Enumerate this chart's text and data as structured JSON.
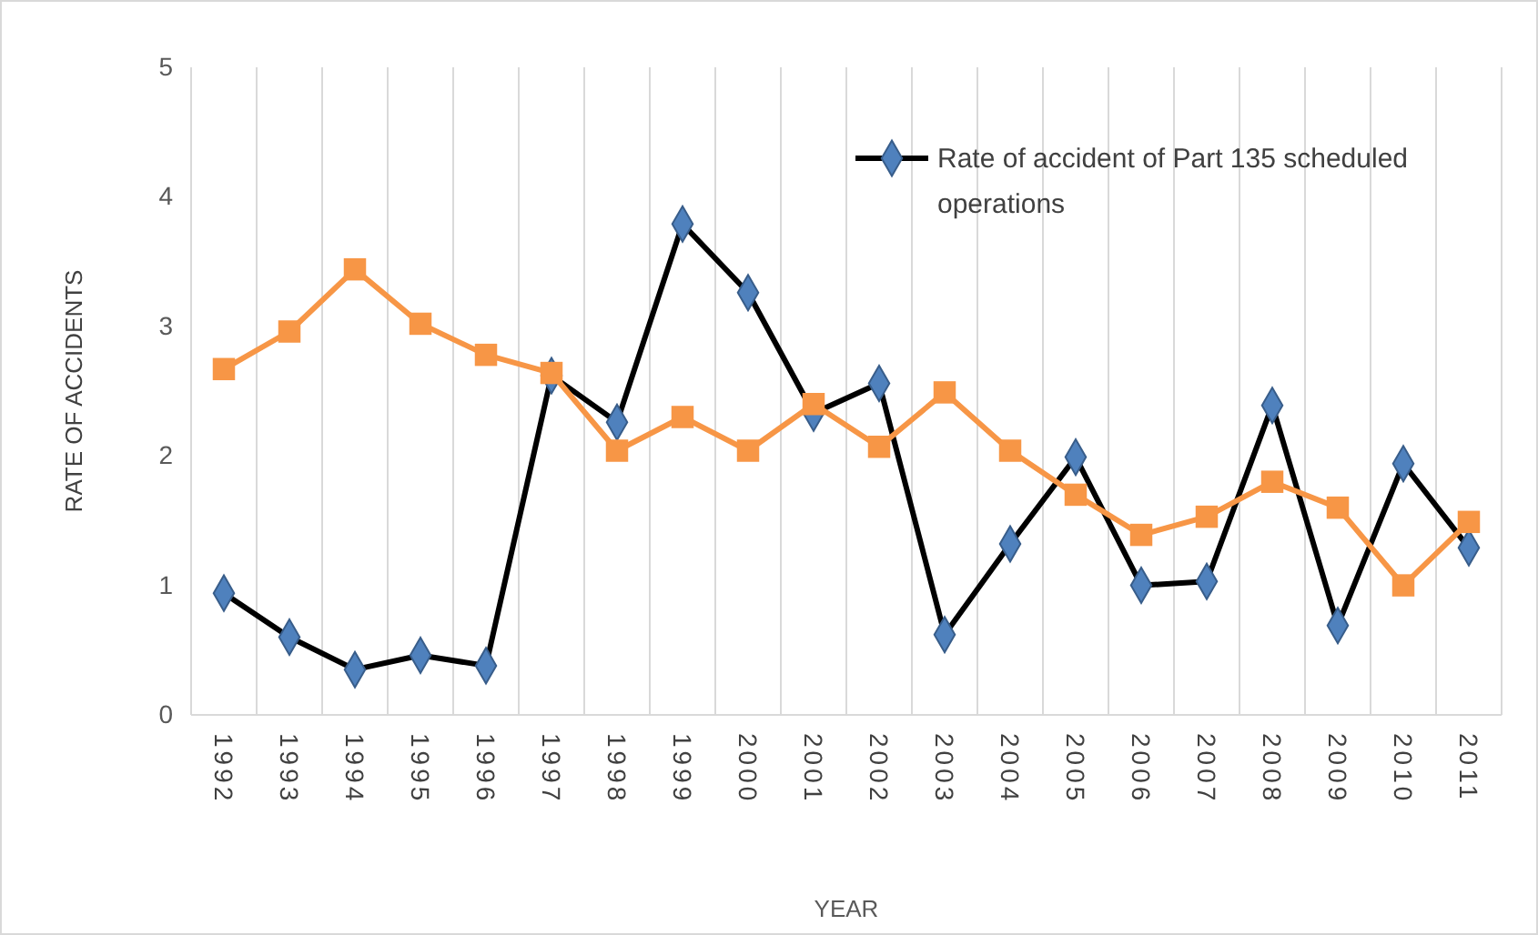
{
  "chart_data": {
    "type": "line",
    "xlabel": "YEAR",
    "ylabel": "RATE OF ACCIDENTS",
    "categories": [
      "1992",
      "1993",
      "1994",
      "1995",
      "1996",
      "1997",
      "1998",
      "1999",
      "2000",
      "2001",
      "2002",
      "2003",
      "2004",
      "2005",
      "2006",
      "2007",
      "2008",
      "2009",
      "2010",
      "2011"
    ],
    "series": [
      {
        "name": "Rate of accident of Part 135 scheduled operations",
        "color": "#000000",
        "colors": [
          "#4f81bd",
          "#4f81bd",
          "#4f81bd",
          "#4f81bd",
          "#4f81bd",
          "#4f81bd",
          "#4f81bd",
          "#4f81bd",
          "#4f81bd",
          "#4f81bd",
          "#4f81bd",
          "#4f81bd",
          "#4f81bd",
          "#4f81bd",
          "#4f81bd",
          "#4f81bd",
          "#4f81bd",
          "#4f81bd",
          "#4f81bd",
          "#4f81bd"
        ],
        "marker": "diamond",
        "values": [
          0.94,
          0.6,
          0.35,
          0.46,
          0.38,
          2.62,
          2.26,
          3.79,
          3.26,
          2.33,
          2.56,
          0.62,
          1.32,
          1.99,
          1.0,
          1.03,
          2.39,
          0.69,
          1.94,
          1.29
        ]
      },
      {
        "color": "#f79646",
        "marker": "square",
        "values": [
          2.67,
          2.96,
          3.44,
          3.02,
          2.78,
          2.64,
          2.04,
          2.3,
          2.04,
          2.4,
          2.07,
          2.49,
          2.04,
          1.7,
          1.39,
          1.53,
          1.8,
          1.6,
          1.0,
          1.49
        ]
      }
    ],
    "ylim": [
      0,
      5
    ],
    "yticks": [
      0,
      1,
      2,
      3,
      4,
      5
    ],
    "grid": "x",
    "legend": "top right",
    "line_style": "solid"
  }
}
